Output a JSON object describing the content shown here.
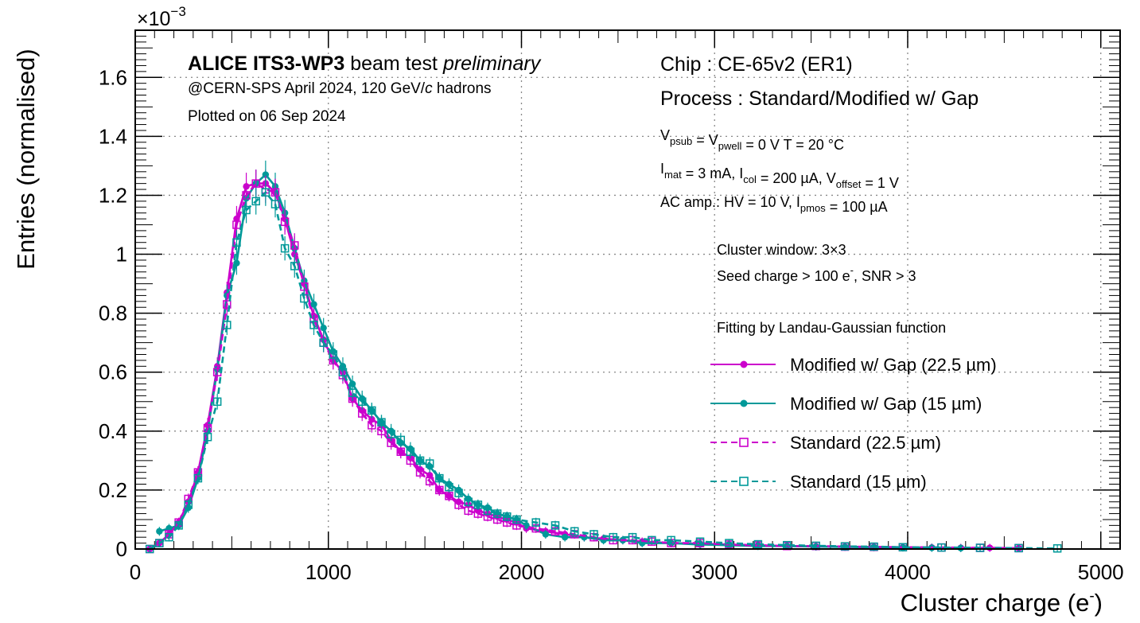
{
  "chart_data": {
    "type": "line",
    "xlabel": "Cluster charge (e",
    "xlabel_sup": "-",
    "ylabel": "Entries (normalised)",
    "y_exponent_label": "×10",
    "y_exponent_sup": "−3",
    "xlim": [
      0,
      5100
    ],
    "ylim": [
      0,
      1.76
    ],
    "x_ticks": [
      "0",
      "1000",
      "2000",
      "3000",
      "4000",
      "5000"
    ],
    "y_ticks": [
      "0",
      "0.2",
      "0.4",
      "0.6",
      "0.8",
      "1",
      "1.2",
      "1.4",
      "1.6"
    ],
    "grid": true,
    "legend_placement": "right",
    "header": {
      "title_bold": "ALICE ITS3-WP3",
      "title_normal": "beam test",
      "title_italic": "preliminary",
      "subline_a": "@CERN-SPS April 2024, 120 GeV/",
      "subline_c": "c",
      "subline_b": " hadrons",
      "plotted": "Plotted on 06 Sep 2024"
    },
    "conditions": {
      "chip": "Chip : CE-65v2 (ER1)",
      "process": "Process : Standard/Modified w/ Gap",
      "line1": [
        {
          "t": "V",
          "s": "psub"
        },
        {
          "t": " = V",
          "s": "pwell"
        },
        {
          "t": " = 0 V        T = 20 °C",
          "s": ""
        }
      ],
      "line2": [
        {
          "t": "I",
          "s": "mat"
        },
        {
          "t": " = 3 mA, I",
          "s": "col"
        },
        {
          "t": " = 200 µA, V",
          "s": "offset"
        },
        {
          "t": " = 1 V",
          "s": ""
        }
      ],
      "line3": [
        {
          "t": "AC amp.: HV = 10 V, I",
          "s": "pmos"
        },
        {
          "t": " = 100 µA",
          "s": ""
        }
      ],
      "cluster_window": "Cluster window: 3×3",
      "seed_a": "Seed charge > 100 e",
      "seed_sup": "-",
      "seed_b": ", SNR > 3",
      "fitting": "Fitting by Landau-Gaussian function"
    },
    "series": [
      {
        "name": "Modified w/ Gap (22.5 µm)",
        "color": "#cc00cc",
        "line": "solid",
        "marker": "filled-circle",
        "x": [
          75,
          125,
          175,
          225,
          275,
          325,
          375,
          425,
          475,
          525,
          575,
          625,
          675,
          725,
          775,
          825,
          875,
          925,
          975,
          1025,
          1075,
          1125,
          1175,
          1225,
          1275,
          1325,
          1375,
          1425,
          1475,
          1525,
          1575,
          1625,
          1675,
          1725,
          1775,
          1825,
          1875,
          1925,
          1975,
          2025,
          2125,
          2225,
          2325,
          2425,
          2525,
          2625,
          2775,
          2925,
          3075,
          3225,
          3375,
          3525,
          3675,
          3825,
          3975,
          4125,
          4275,
          4425,
          4575
        ],
        "y": [
          0.0,
          0.02,
          0.05,
          0.09,
          0.16,
          0.26,
          0.42,
          0.62,
          0.87,
          1.12,
          1.23,
          1.24,
          1.24,
          1.21,
          1.12,
          1.0,
          0.9,
          0.79,
          0.71,
          0.64,
          0.6,
          0.51,
          0.47,
          0.44,
          0.42,
          0.37,
          0.33,
          0.31,
          0.27,
          0.25,
          0.2,
          0.18,
          0.16,
          0.15,
          0.13,
          0.12,
          0.11,
          0.1,
          0.09,
          0.07,
          0.06,
          0.05,
          0.04,
          0.035,
          0.03,
          0.025,
          0.02,
          0.018,
          0.015,
          0.013,
          0.01,
          0.009,
          0.008,
          0.007,
          0.006,
          0.005,
          0.004,
          0.004,
          0.003
        ]
      },
      {
        "name": "Modified w/ Gap (15 µm)",
        "color": "#009999",
        "line": "solid",
        "marker": "filled-circle",
        "x": [
          125,
          175,
          225,
          275,
          325,
          375,
          425,
          475,
          525,
          575,
          625,
          675,
          725,
          775,
          825,
          875,
          925,
          975,
          1025,
          1075,
          1125,
          1175,
          1225,
          1275,
          1325,
          1375,
          1425,
          1475,
          1525,
          1575,
          1625,
          1675,
          1725,
          1775,
          1825,
          1875,
          1925,
          1975,
          2025,
          2125,
          2225,
          2325,
          2425,
          2525,
          2625,
          2775,
          2925,
          3075,
          3225,
          3375,
          3525,
          3675,
          3825,
          3975,
          4125,
          4275
        ],
        "y": [
          0.06,
          0.07,
          0.08,
          0.14,
          0.24,
          0.4,
          0.61,
          0.86,
          0.97,
          1.19,
          1.24,
          1.27,
          1.23,
          1.14,
          1.02,
          0.91,
          0.83,
          0.75,
          0.67,
          0.62,
          0.56,
          0.51,
          0.47,
          0.43,
          0.4,
          0.36,
          0.34,
          0.3,
          0.28,
          0.24,
          0.22,
          0.2,
          0.17,
          0.15,
          0.14,
          0.12,
          0.11,
          0.1,
          0.08,
          0.05,
          0.04,
          0.04,
          0.03,
          0.03,
          0.02,
          0.02,
          0.015,
          0.013,
          0.01,
          0.01,
          0.008,
          0.007,
          0.006,
          0.005,
          0.004,
          0.003
        ]
      },
      {
        "name": "Standard (22.5 µm)",
        "color": "#cc00cc",
        "line": "dashed",
        "marker": "open-square",
        "x": [
          75,
          125,
          175,
          225,
          275,
          325,
          375,
          425,
          475,
          525,
          575,
          625,
          675,
          725,
          775,
          825,
          875,
          925,
          975,
          1025,
          1075,
          1125,
          1175,
          1225,
          1275,
          1325,
          1375,
          1425,
          1475,
          1525,
          1575,
          1625,
          1675,
          1725,
          1775,
          1825,
          1875,
          1925,
          1975,
          2075,
          2175,
          2275,
          2375,
          2475,
          2575,
          2675,
          2775,
          2925,
          3075,
          3225,
          3375,
          3525,
          3675,
          3825,
          3975,
          4175,
          4375,
          4575
        ],
        "y": [
          0.0,
          0.02,
          0.05,
          0.09,
          0.17,
          0.26,
          0.41,
          0.6,
          0.83,
          1.1,
          1.2,
          1.24,
          1.22,
          1.21,
          1.11,
          1.03,
          0.89,
          0.78,
          0.7,
          0.64,
          0.59,
          0.51,
          0.46,
          0.42,
          0.4,
          0.36,
          0.33,
          0.3,
          0.26,
          0.23,
          0.2,
          0.18,
          0.15,
          0.13,
          0.12,
          0.11,
          0.1,
          0.09,
          0.08,
          0.07,
          0.06,
          0.05,
          0.04,
          0.03,
          0.03,
          0.025,
          0.02,
          0.02,
          0.015,
          0.012,
          0.01,
          0.01,
          0.008,
          0.007,
          0.006,
          0.005,
          0.004,
          0.003
        ]
      },
      {
        "name": "Standard (15 µm)",
        "color": "#009999",
        "line": "dashed",
        "marker": "open-square",
        "x": [
          75,
          125,
          175,
          225,
          275,
          325,
          375,
          425,
          475,
          525,
          575,
          625,
          675,
          725,
          775,
          825,
          875,
          925,
          975,
          1025,
          1075,
          1125,
          1175,
          1225,
          1275,
          1325,
          1375,
          1425,
          1475,
          1525,
          1575,
          1625,
          1675,
          1725,
          1775,
          1825,
          1875,
          1925,
          1975,
          2075,
          2175,
          2275,
          2375,
          2475,
          2575,
          2675,
          2775,
          2925,
          3075,
          3225,
          3375,
          3525,
          3675,
          3825,
          3975,
          4175,
          4375,
          4575,
          4775
        ],
        "y": [
          0.0,
          0.02,
          0.04,
          0.08,
          0.15,
          0.24,
          0.38,
          0.5,
          0.76,
          1.04,
          1.15,
          1.18,
          1.21,
          1.17,
          1.02,
          0.96,
          0.85,
          0.76,
          0.7,
          0.66,
          0.6,
          0.53,
          0.5,
          0.47,
          0.43,
          0.39,
          0.37,
          0.33,
          0.3,
          0.29,
          0.24,
          0.21,
          0.19,
          0.16,
          0.15,
          0.13,
          0.12,
          0.11,
          0.1,
          0.09,
          0.08,
          0.06,
          0.05,
          0.04,
          0.04,
          0.03,
          0.03,
          0.025,
          0.02,
          0.016,
          0.013,
          0.011,
          0.009,
          0.008,
          0.006,
          0.005,
          0.004,
          0.003,
          0.002
        ]
      }
    ]
  }
}
